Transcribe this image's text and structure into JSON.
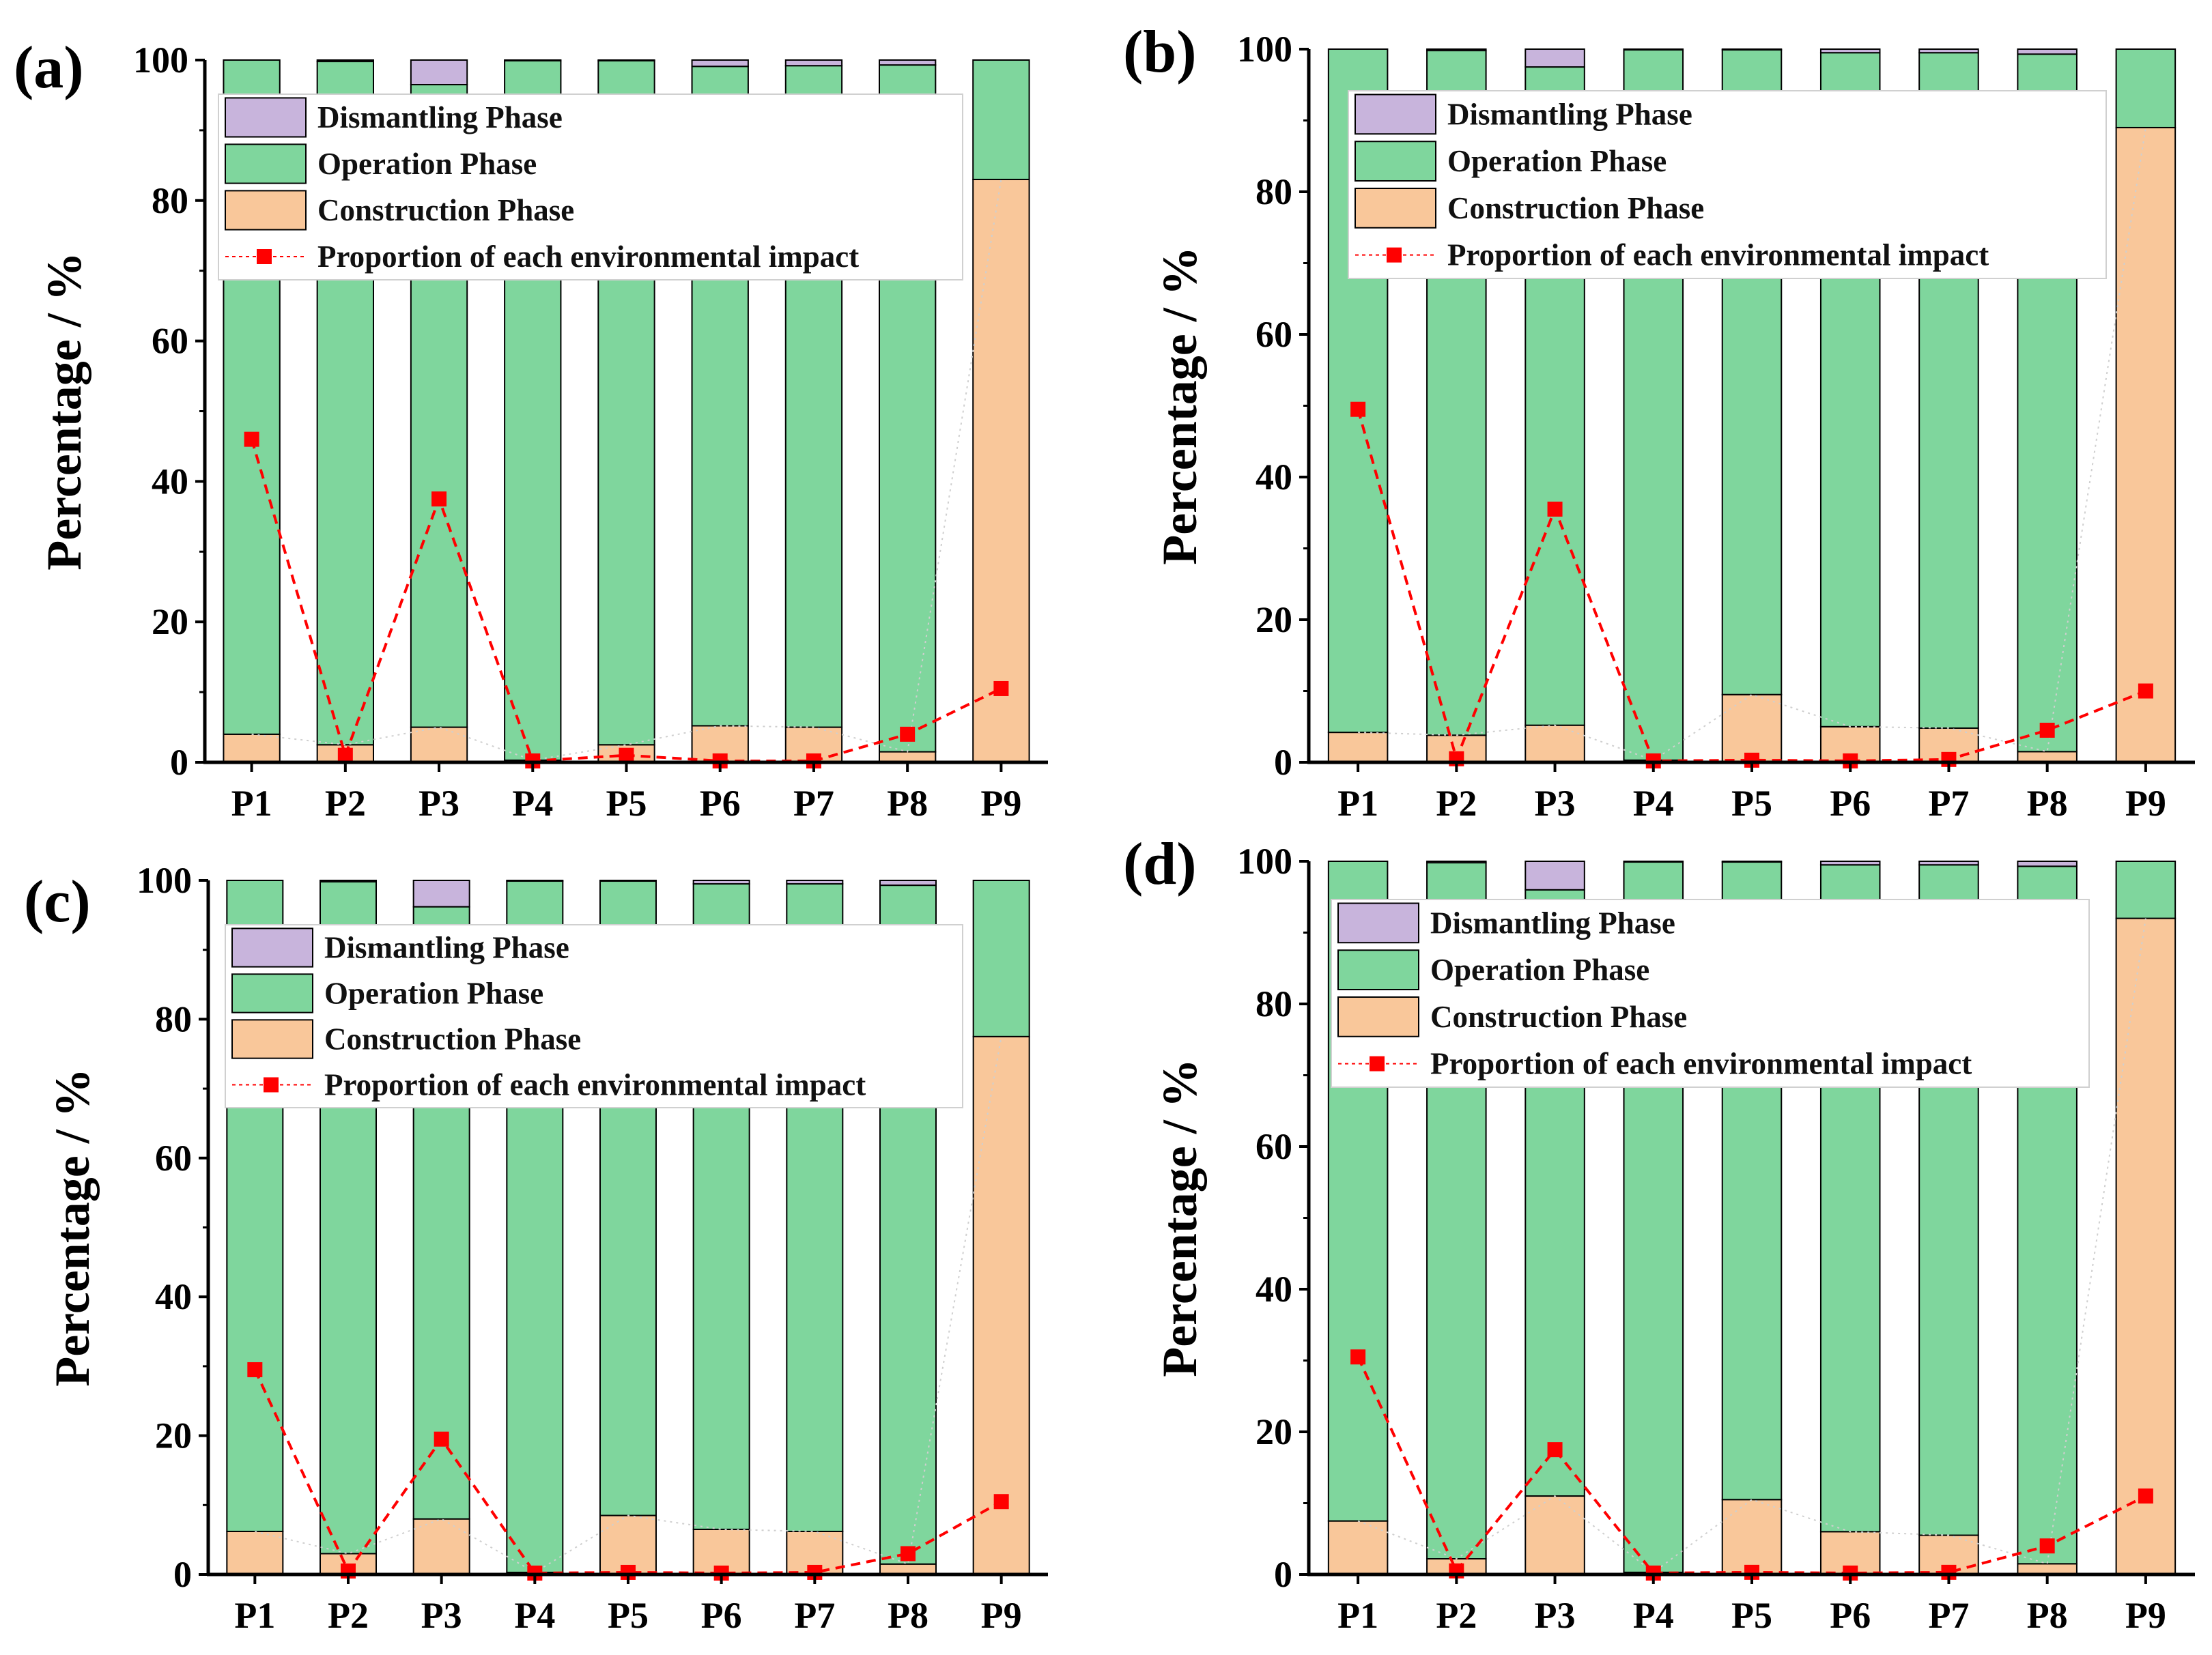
{
  "colors": {
    "dismantling": "#c8b4dc",
    "operation": "#7fd69d",
    "construction": "#f9c79a",
    "proportion": "#ff0000",
    "axis": "#000000"
  },
  "chart_data": [
    {
      "panel": "(a)",
      "type": "bar",
      "stacked": true,
      "categories": [
        "P1",
        "P2",
        "P3",
        "P4",
        "P5",
        "P6",
        "P7",
        "P8",
        "P9"
      ],
      "series": [
        {
          "name": "Construction Phase",
          "values": [
            4.0,
            2.5,
            5.0,
            0.3,
            2.5,
            5.2,
            5.0,
            1.5,
            83.0
          ]
        },
        {
          "name": "Operation Phase",
          "values": [
            96.0,
            97.3,
            91.5,
            99.6,
            97.4,
            93.9,
            94.2,
            97.8,
            17.0
          ]
        },
        {
          "name": "Dismantling Phase",
          "values": [
            0.0,
            0.2,
            3.5,
            0.1,
            0.1,
            0.9,
            0.8,
            0.7,
            0.0
          ]
        }
      ],
      "line": {
        "name": "Proportion of each environmental impact",
        "values": [
          46,
          1,
          37.5,
          0.2,
          1,
          0.2,
          0.2,
          4,
          10.5
        ]
      },
      "legend": [
        "Dismantling Phase",
        "Operation Phase",
        "Construction Phase",
        "Proportion of each environmental impact"
      ],
      "ylabel": "Percentage / %",
      "xlabel": "",
      "ylim": [
        0,
        100
      ],
      "yticks": [
        "0",
        "20",
        "40",
        "60",
        "80",
        "100"
      ]
    },
    {
      "panel": "(b)",
      "type": "bar",
      "stacked": true,
      "categories": [
        "P1",
        "P2",
        "P3",
        "P4",
        "P5",
        "P6",
        "P7",
        "P8",
        "P9"
      ],
      "series": [
        {
          "name": "Construction Phase",
          "values": [
            4.2,
            3.8,
            5.2,
            0.3,
            9.5,
            5.0,
            4.8,
            1.5,
            89.0
          ]
        },
        {
          "name": "Operation Phase",
          "values": [
            95.8,
            96.0,
            92.3,
            99.6,
            90.4,
            94.5,
            94.7,
            97.8,
            11.0
          ]
        },
        {
          "name": "Dismantling Phase",
          "values": [
            0.0,
            0.2,
            2.5,
            0.1,
            0.1,
            0.5,
            0.5,
            0.7,
            0.0
          ]
        }
      ],
      "line": {
        "name": "Proportion of each environmental impact",
        "values": [
          49.5,
          0.5,
          35.5,
          0.2,
          0.3,
          0.2,
          0.4,
          4.5,
          10
        ]
      },
      "legend": [
        "Dismantling Phase",
        "Operation Phase",
        "Construction Phase",
        "Proportion of each environmental impact"
      ],
      "ylabel": "Percentage / %",
      "xlabel": "",
      "ylim": [
        0,
        100
      ],
      "yticks": [
        "0",
        "20",
        "40",
        "60",
        "80",
        "100"
      ]
    },
    {
      "panel": "(c)",
      "type": "bar",
      "stacked": true,
      "categories": [
        "P1",
        "P2",
        "P3",
        "P4",
        "P5",
        "P6",
        "P7",
        "P8",
        "P9"
      ],
      "series": [
        {
          "name": "Construction Phase",
          "values": [
            6.2,
            3.0,
            8.0,
            0.3,
            8.5,
            6.5,
            6.2,
            1.5,
            77.5
          ]
        },
        {
          "name": "Operation Phase",
          "values": [
            93.8,
            96.8,
            88.2,
            99.6,
            91.4,
            93.0,
            93.3,
            97.8,
            22.5
          ]
        },
        {
          "name": "Dismantling Phase",
          "values": [
            0.0,
            0.2,
            3.8,
            0.1,
            0.1,
            0.5,
            0.5,
            0.7,
            0.0
          ]
        }
      ],
      "line": {
        "name": "Proportion of each environmental impact",
        "values": [
          29.5,
          0.5,
          19.5,
          0.2,
          0.3,
          0.2,
          0.3,
          3,
          10.5
        ]
      },
      "legend": [
        "Dismantling Phase",
        "Operation Phase",
        "Construction Phase",
        "Proportion of each environmental impact"
      ],
      "ylabel": "Percentage / %",
      "xlabel": "",
      "ylim": [
        0,
        100
      ],
      "yticks": [
        "0",
        "20",
        "40",
        "60",
        "80",
        "100"
      ]
    },
    {
      "panel": "(d)",
      "type": "bar",
      "stacked": true,
      "categories": [
        "P1",
        "P2",
        "P3",
        "P4",
        "P5",
        "P6",
        "P7",
        "P8",
        "P9"
      ],
      "series": [
        {
          "name": "Construction Phase",
          "values": [
            7.5,
            2.2,
            11.0,
            0.3,
            10.5,
            6.0,
            5.5,
            1.5,
            92.0
          ]
        },
        {
          "name": "Operation Phase",
          "values": [
            92.5,
            97.6,
            85.0,
            99.6,
            89.4,
            93.5,
            94.0,
            97.8,
            8.0
          ]
        },
        {
          "name": "Dismantling Phase",
          "values": [
            0.0,
            0.2,
            4.0,
            0.1,
            0.1,
            0.5,
            0.5,
            0.7,
            0.0
          ]
        }
      ],
      "line": {
        "name": "Proportion of each environmental impact",
        "values": [
          30.5,
          0.5,
          17.5,
          0.2,
          0.3,
          0.2,
          0.3,
          4,
          11
        ]
      },
      "legend": [
        "Dismantling Phase",
        "Operation Phase",
        "Construction Phase",
        "Proportion of each environmental impact"
      ],
      "ylabel": "Percentage / %",
      "xlabel": "",
      "ylim": [
        0,
        100
      ],
      "yticks": [
        "0",
        "20",
        "40",
        "60",
        "80",
        "100"
      ]
    }
  ]
}
